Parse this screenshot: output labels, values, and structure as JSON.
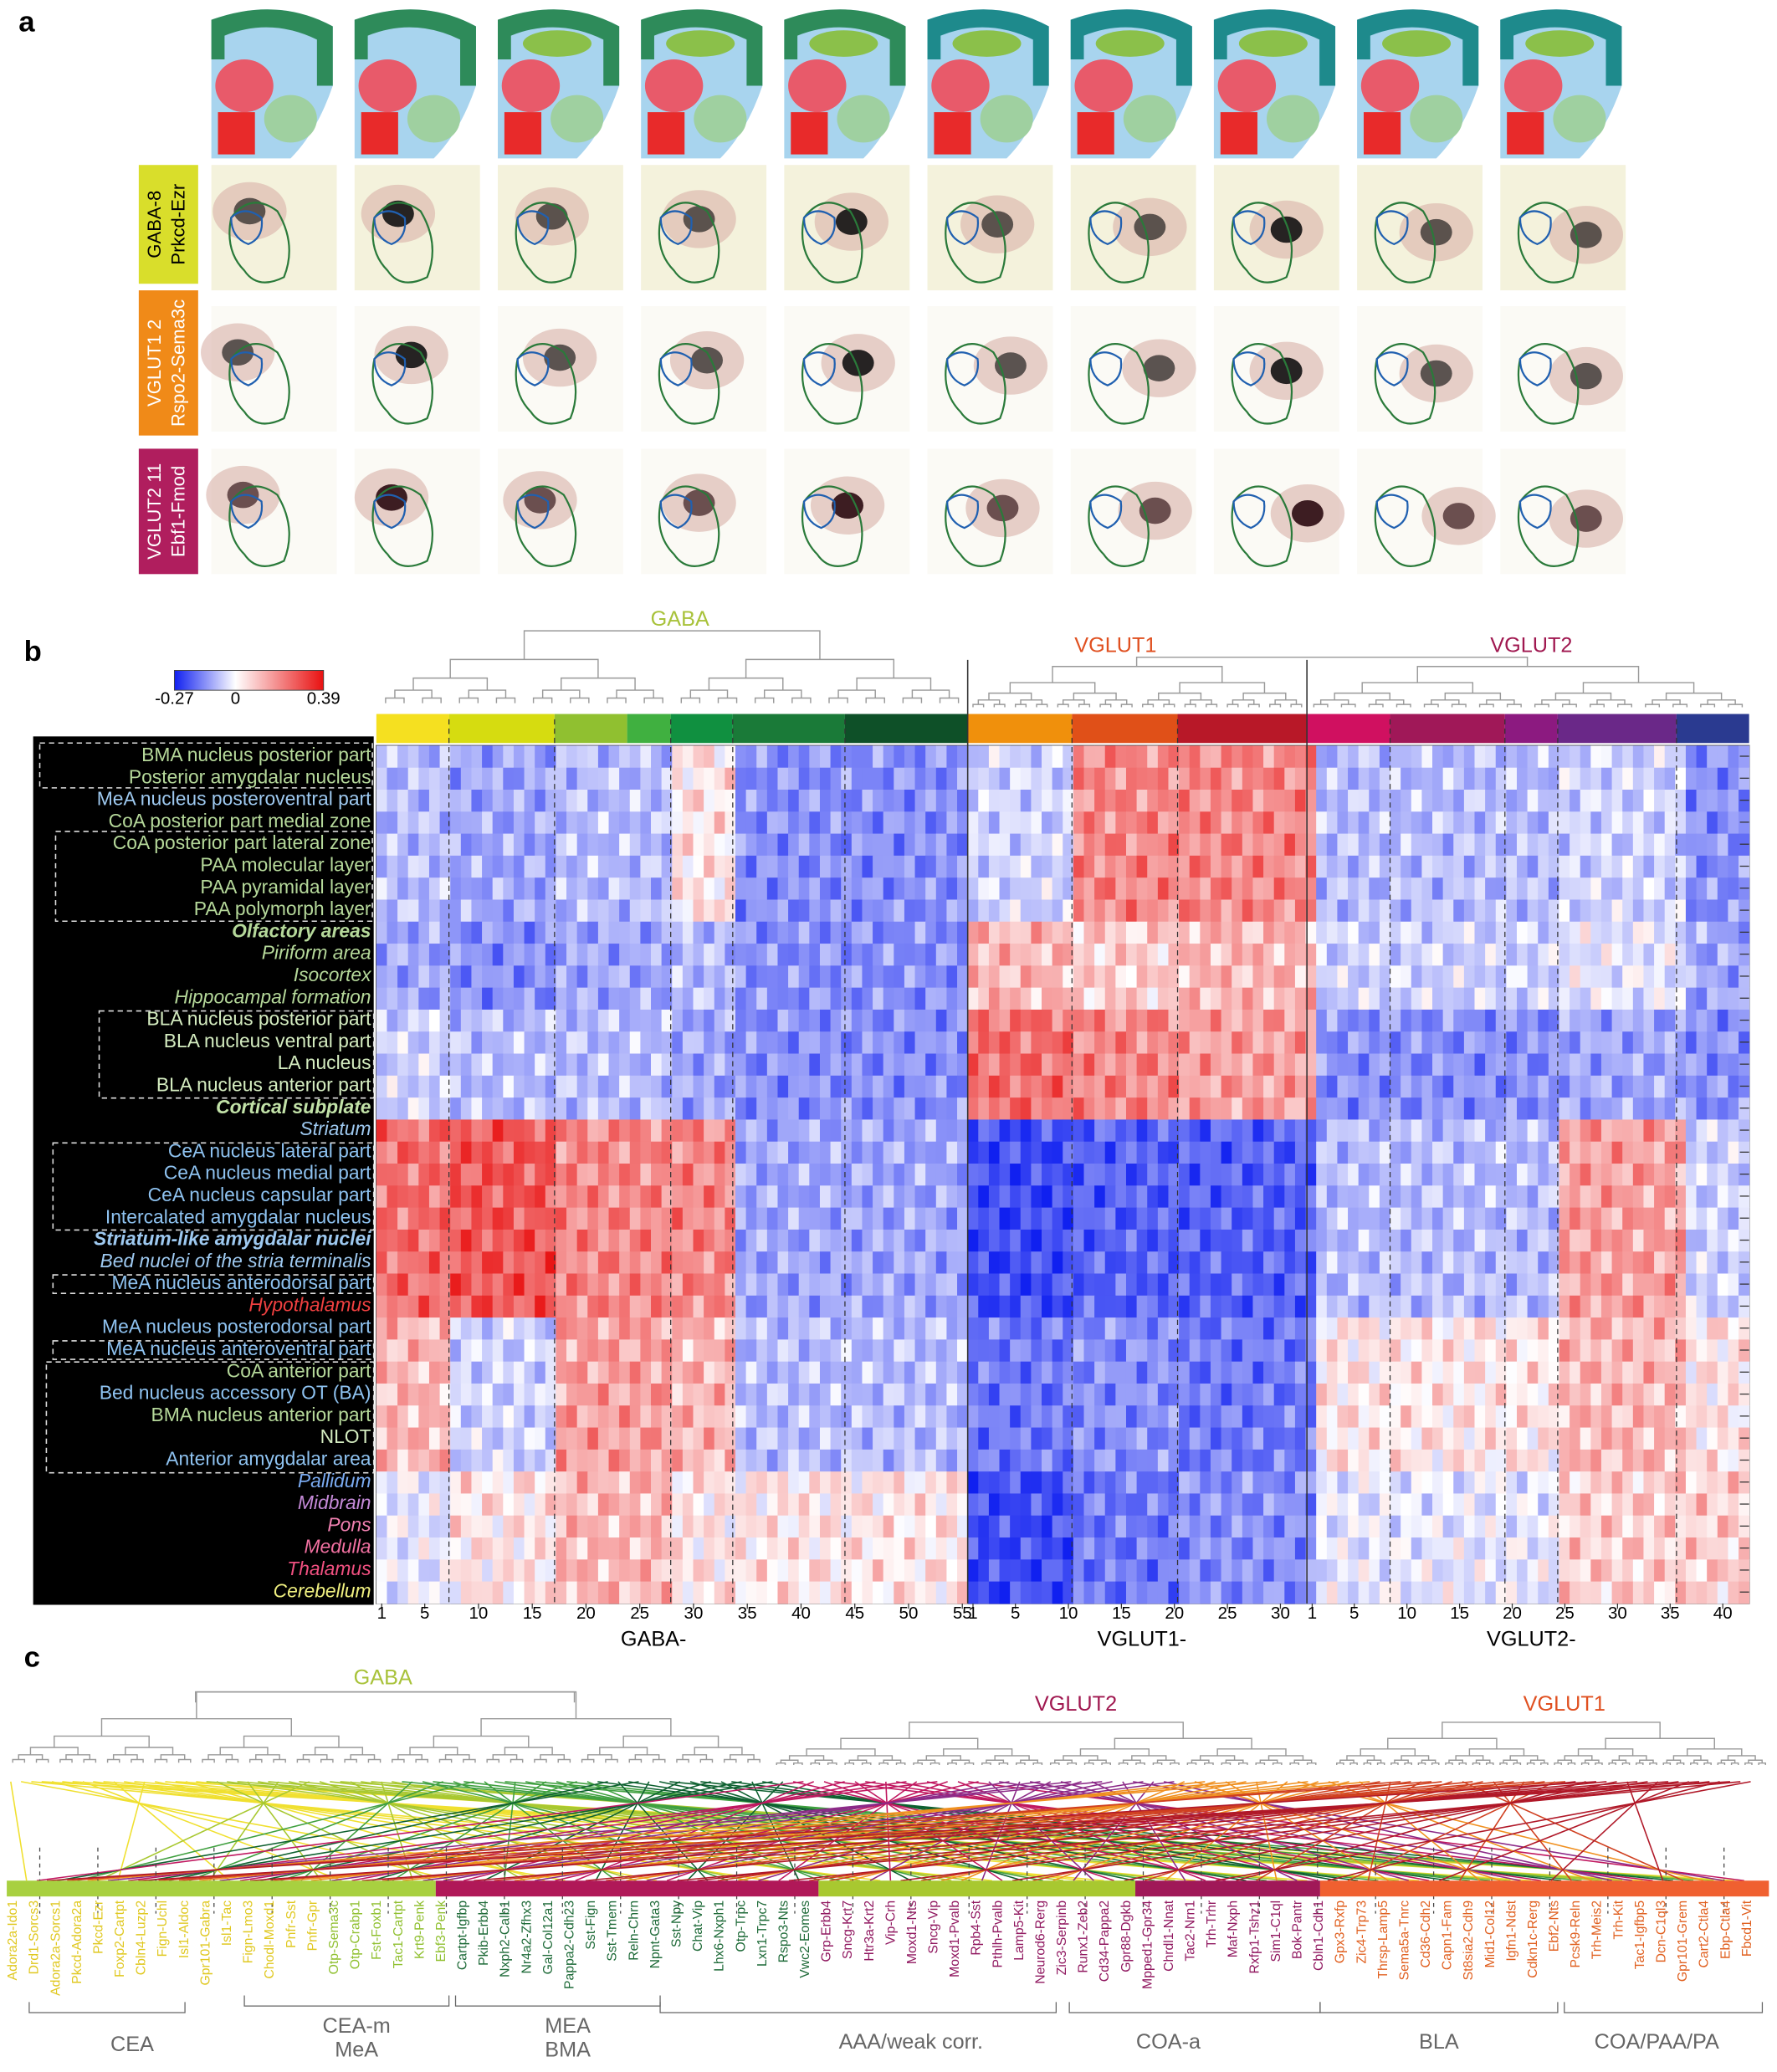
{
  "panel_labels": [
    "a",
    "b",
    "c"
  ],
  "panel_a": {
    "rows": [
      {
        "lines": [
          "GABA-8",
          "Prkcd-Ezr"
        ],
        "color": "#d9de2b"
      },
      {
        "lines": [
          "VGLUT1 2",
          "Rspo2-Sema3c"
        ],
        "color": "#f08a18"
      },
      {
        "lines": [
          "VGLUT2 11",
          "Ebf1-Fmod"
        ],
        "color": "#b01e5e"
      }
    ]
  },
  "panel_b": {
    "colorbar": {
      "min": -0.27,
      "mid": 0,
      "max": 0.39
    },
    "group_titles": [
      {
        "label": "GABA",
        "color": "#a8c23a"
      },
      {
        "label": "VGLUT1",
        "color": "#e05020"
      },
      {
        "label": "VGLUT2",
        "color": "#a01850"
      }
    ],
    "rows": [
      {
        "label": "BMA nucleus posterior part",
        "color": "#b5d89a",
        "style": "normal"
      },
      {
        "label": "Posterior amygdalar nucleus",
        "color": "#b5d89a",
        "style": "normal"
      },
      {
        "label": "MeA nucleus posteroventral part",
        "color": "#9ec9f0",
        "style": "normal"
      },
      {
        "label": "CoA posterior part medial zone",
        "color": "#b5d89a",
        "style": "normal"
      },
      {
        "label": "CoA posterior part lateral zone",
        "color": "#b5d89a",
        "style": "normal"
      },
      {
        "label": "PAA molecular layer",
        "color": "#b5d89a",
        "style": "normal"
      },
      {
        "label": "PAA pyramidal layer",
        "color": "#b5d89a",
        "style": "normal"
      },
      {
        "label": "PAA polymorph layer",
        "color": "#b5d89a",
        "style": "normal"
      },
      {
        "label": "Olfactory areas",
        "color": "#b5d89a",
        "style": "bold-italic"
      },
      {
        "label": "Piriform area",
        "color": "#b5d89a",
        "style": "italic"
      },
      {
        "label": "Isocortex",
        "color": "#b5d89a",
        "style": "italic"
      },
      {
        "label": "Hippocampal formation",
        "color": "#b5d89a",
        "style": "italic"
      },
      {
        "label": "BLA nucleus posterior part",
        "color": "#d4ecc0",
        "style": "normal"
      },
      {
        "label": "BLA nucleus ventral part",
        "color": "#d4ecc0",
        "style": "normal"
      },
      {
        "label": "LA nucleus",
        "color": "#d4ecc0",
        "style": "normal"
      },
      {
        "label": "BLA nucleus anterior part",
        "color": "#d4ecc0",
        "style": "normal"
      },
      {
        "label": "Cortical subplate",
        "color": "#c2e2a8",
        "style": "bold-italic"
      },
      {
        "label": "Striatum",
        "color": "#9ec9f0",
        "style": "italic"
      },
      {
        "label": "CeA nucleus lateral part",
        "color": "#8ec2f0",
        "style": "normal"
      },
      {
        "label": "CeA nucleus medial part",
        "color": "#8ec2f0",
        "style": "normal"
      },
      {
        "label": "CeA nucleus capsular part",
        "color": "#8ec2f0",
        "style": "normal"
      },
      {
        "label": "Intercalated amygdalar nucleus",
        "color": "#8ec2f0",
        "style": "normal"
      },
      {
        "label": "Striatum-like amygdalar nuclei",
        "color": "#9ec9f0",
        "style": "bold-italic"
      },
      {
        "label": "Bed nuclei of the stria terminalis",
        "color": "#9ec9f0",
        "style": "italic"
      },
      {
        "label": "MeA nucleus anterodorsal part",
        "color": "#8ec2f0",
        "style": "normal"
      },
      {
        "label": "Hypothalamus",
        "color": "#f04040",
        "style": "italic"
      },
      {
        "label": "MeA nucleus posterodorsal part",
        "color": "#8ec2f0",
        "style": "normal"
      },
      {
        "label": "MeA nucleus anteroventral part",
        "color": "#8ec2f0",
        "style": "normal"
      },
      {
        "label": "CoA anterior part",
        "color": "#b5d89a",
        "style": "normal"
      },
      {
        "label": "Bed nucleus accessory OT (BA)",
        "color": "#8ec2f0",
        "style": "normal"
      },
      {
        "label": "BMA nucleus anterior part",
        "color": "#b5d89a",
        "style": "normal"
      },
      {
        "label": "NLOT",
        "color": "#d4ecc0",
        "style": "normal"
      },
      {
        "label": "Anterior amygdalar area",
        "color": "#8ec2f0",
        "style": "normal"
      },
      {
        "label": "Pallidum",
        "color": "#7aaaf0",
        "style": "italic"
      },
      {
        "label": "Midbrain",
        "color": "#c58ad8",
        "style": "italic"
      },
      {
        "label": "Pons",
        "color": "#f080b0",
        "style": "italic"
      },
      {
        "label": "Medulla",
        "color": "#f070a0",
        "style": "italic"
      },
      {
        "label": "Thalamus",
        "color": "#f05080",
        "style": "italic"
      },
      {
        "label": "Cerebellum",
        "color": "#f0f080",
        "style": "italic"
      }
    ],
    "x_groups": [
      {
        "label": "GABA-",
        "ticks": [
          1,
          5,
          10,
          15,
          20,
          25,
          30,
          35,
          40,
          45,
          50,
          55
        ]
      },
      {
        "label": "VGLUT1-",
        "ticks": [
          1,
          5,
          10,
          15,
          20,
          25,
          30
        ]
      },
      {
        "label": "VGLUT2-",
        "ticks": [
          1,
          5,
          10,
          15,
          20,
          25,
          30,
          35,
          40
        ]
      }
    ]
  },
  "panel_c": {
    "group_titles": [
      {
        "label": "GABA",
        "color": "#a8c23a"
      },
      {
        "label": "VGLUT2",
        "color": "#a01850"
      },
      {
        "label": "VGLUT1",
        "color": "#e05020"
      }
    ],
    "regions": [
      [
        "CEA"
      ],
      [
        "CEA-m",
        "MeA"
      ],
      [
        "MEA",
        "BMA"
      ],
      [
        "AAA/weak corr."
      ],
      [
        "COA-a"
      ],
      [
        "BLA"
      ],
      [
        "COA/PAA/PA"
      ]
    ],
    "leaves": [
      "Adora2a-Ido1",
      "Drd1-Sorcs3",
      "Adora2a-Sorcs1",
      "Pkcd-Adora2a",
      "Pkcd-Ezr",
      "Foxp2-Cartpt",
      "Cbln4-Luzp2",
      "Fign-Uchl",
      "Isl1-Aldoc",
      "Gpr101-Gabra",
      "Isl1-Tac",
      "Fign-Lmo3",
      "Chodl-Moxd1",
      "Pnfr-Sst",
      "Pnfr-Gpr",
      "Otp-Sema3c",
      "Otp-Crabp1",
      "Fst-Foxb1",
      "Tac1-Cartpt",
      "Krt9-Penk",
      "Ebf3-Penk",
      "Cartpt-Igfbp",
      "Pkib-Erbb4",
      "Nxph2-Calb1",
      "Nr4a2-Zfhx3",
      "Gal-Col12a1",
      "Pappa2-Cdh23",
      "Sst-Fign",
      "Sst-Tmem",
      "Reln-Chrn",
      "Npnt-Gata3",
      "Sst-Npy",
      "Chat-Vip",
      "Lhx6-Nxph1",
      "Otp-Trpc",
      "Lxn1-Trpc7",
      "Rspo3-Nts",
      "Vwc2-Eomes",
      "Grp-Erbb4",
      "Sncg-Krt7",
      "Htr3a-Krt2",
      "Vip-Crh",
      "Moxd1-Nts",
      "Sncg-Vip",
      "Moxd1-Pvalb",
      "Rpb4-Sst",
      "Pthlh-Pvalb",
      "Lamp5-Kit",
      "Neurod6-Rerg",
      "Zic3-Serpinb",
      "Runx1-Zeb2",
      "Cd34-Pappa2",
      "Gpr88-Dgkb",
      "Mpped1-Gpr34",
      "Chrdl1-Nnat",
      "Tac2-Nrn1",
      "Trh-Trhr",
      "Maf-Nxph",
      "Rxfp1-Tshz1",
      "Sim1-C1ql",
      "Bok-Pantr",
      "Cbln1-Cdh1",
      "Gpx3-Rxfp",
      "Zic4-Trp73",
      "Thrsp-Lamp5",
      "Sema5a-Tnrc",
      "Cd36-Cdh2",
      "Capn1-Fam",
      "St8sia2-Cdh9",
      "Mid1-Col12",
      "Igfn1-Ndst",
      "Cdkn1c-Rerg",
      "Ebf2-Nts",
      "Pcsk9-Reln",
      "Trh-Meis2",
      "Trh-Kit",
      "Tac1-Igfbp5",
      "Dcn-C1ql3",
      "Gpr101-Grem",
      "Cart2-Ctla4",
      "Ebp-Ctla4",
      "Fbcd1-Vit"
    ]
  }
}
